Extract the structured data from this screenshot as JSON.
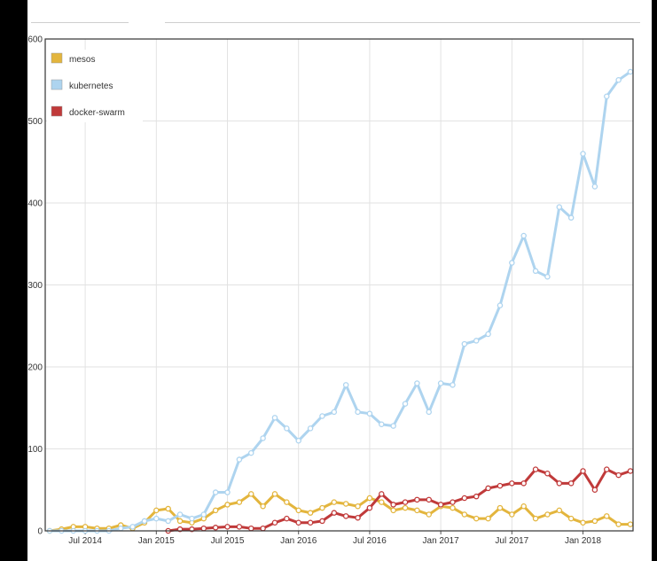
{
  "chart_data": {
    "type": "line",
    "title": "",
    "xlabel": "",
    "ylabel": "",
    "ylim": [
      0,
      600
    ],
    "yticks": [
      0,
      100,
      200,
      300,
      400,
      500,
      600
    ],
    "xticks": [
      "Jul 2014",
      "Jan 2015",
      "Jul 2015",
      "Jan 2016",
      "Jul 2016",
      "Jan 2017",
      "Jul 2017",
      "Jan 2018"
    ],
    "x": [
      "2014-04",
      "2014-05",
      "2014-06",
      "2014-07",
      "2014-08",
      "2014-09",
      "2014-10",
      "2014-11",
      "2014-12",
      "2015-01",
      "2015-02",
      "2015-03",
      "2015-04",
      "2015-05",
      "2015-06",
      "2015-07",
      "2015-08",
      "2015-09",
      "2015-10",
      "2015-11",
      "2015-12",
      "2016-01",
      "2016-02",
      "2016-03",
      "2016-04",
      "2016-05",
      "2016-06",
      "2016-07",
      "2016-08",
      "2016-09",
      "2016-10",
      "2016-11",
      "2016-12",
      "2017-01",
      "2017-02",
      "2017-03",
      "2017-04",
      "2017-05",
      "2017-06",
      "2017-07",
      "2017-08",
      "2017-09",
      "2017-10",
      "2017-11",
      "2017-12",
      "2018-01",
      "2018-02",
      "2018-03",
      "2018-04",
      "2018-05"
    ],
    "legend_position": "top-left",
    "grid": true,
    "series": [
      {
        "name": "mesos",
        "color": "#e3b53d",
        "values": [
          0,
          2,
          5,
          5,
          3,
          3,
          7,
          3,
          10,
          25,
          27,
          12,
          10,
          15,
          25,
          32,
          35,
          45,
          30,
          45,
          35,
          25,
          22,
          28,
          35,
          33,
          30,
          40,
          35,
          25,
          28,
          25,
          20,
          30,
          28,
          20,
          15,
          15,
          28,
          20,
          30,
          15,
          20,
          25,
          15,
          10,
          12,
          18,
          8,
          8
        ]
      },
      {
        "name": "kubernetes",
        "color": "#aed4ef",
        "values": [
          0,
          0,
          0,
          0,
          0,
          0,
          3,
          5,
          12,
          15,
          12,
          20,
          15,
          20,
          47,
          47,
          87,
          95,
          113,
          138,
          125,
          110,
          125,
          140,
          145,
          178,
          145,
          143,
          130,
          128,
          155,
          180,
          145,
          180,
          178,
          228,
          232,
          240,
          275,
          327,
          360,
          317,
          310,
          395,
          382,
          460,
          420,
          530,
          550,
          560
        ]
      },
      {
        "name": "docker-swarm",
        "color": "#c03a3a",
        "values": [
          null,
          null,
          null,
          null,
          null,
          null,
          null,
          null,
          null,
          null,
          0,
          2,
          2,
          3,
          4,
          5,
          5,
          3,
          3,
          10,
          15,
          10,
          10,
          12,
          22,
          18,
          16,
          28,
          45,
          32,
          35,
          38,
          38,
          32,
          35,
          40,
          42,
          52,
          55,
          58,
          58,
          75,
          70,
          58,
          58,
          73,
          50,
          75,
          68,
          73
        ]
      }
    ]
  }
}
